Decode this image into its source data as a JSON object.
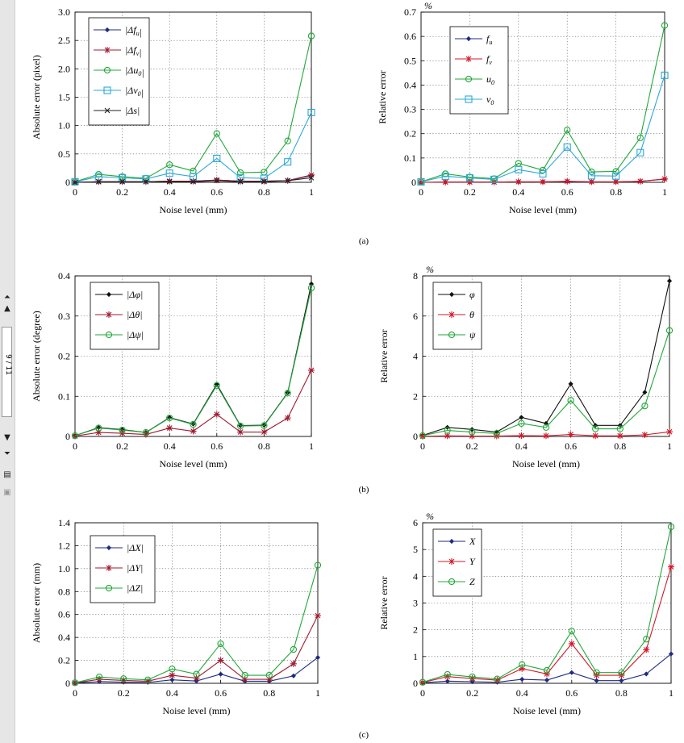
{
  "viewer": {
    "page_indicator": "9 / 11",
    "icons": [
      "first-page-icon",
      "prev-page-icon",
      "next-page-icon",
      "last-page-icon",
      "print-icon",
      "save-icon"
    ]
  },
  "panel_labels": [
    "(a)",
    "(b)",
    "(c)"
  ],
  "chart_data": [
    {
      "type": "line",
      "xlabel": "Noise level (mm)",
      "ylabel": "Absolute error (pixel)",
      "unit_label": "",
      "xlim": [
        0,
        1
      ],
      "ylim": [
        0,
        3
      ],
      "xticks": [
        "0",
        "0.2",
        "0.4",
        "0.6",
        "0.8",
        "1"
      ],
      "yticks": [
        "0",
        "0.5",
        "1.0",
        "1.5",
        "2.0",
        "2.5",
        "3.0"
      ],
      "grid": true,
      "legend": "top-left",
      "x": [
        0,
        0.1,
        0.2,
        0.3,
        0.4,
        0.5,
        0.6,
        0.7,
        0.8,
        0.9,
        1
      ],
      "series": [
        {
          "name": "|Δf_u|",
          "color": "#1f2a80",
          "marker": "diamond",
          "values": [
            0,
            0.01,
            0.01,
            0.01,
            0.02,
            0.02,
            0.04,
            0.02,
            0.02,
            0.03,
            0.12
          ]
        },
        {
          "name": "|Δf_v|",
          "color": "#a01a30",
          "marker": "star",
          "values": [
            0,
            0.01,
            0.01,
            0.01,
            0.02,
            0.02,
            0.04,
            0.02,
            0.02,
            0.03,
            0.13
          ]
        },
        {
          "name": "|Δu_0|",
          "color": "#22a83a",
          "marker": "circle",
          "values": [
            0.01,
            0.14,
            0.1,
            0.07,
            0.31,
            0.2,
            0.86,
            0.17,
            0.18,
            0.73,
            2.58
          ]
        },
        {
          "name": "|Δv_0|",
          "color": "#2aa8d8",
          "marker": "square",
          "values": [
            0.01,
            0.1,
            0.08,
            0.06,
            0.16,
            0.1,
            0.42,
            0.08,
            0.07,
            0.36,
            1.23
          ]
        },
        {
          "name": "|Δs|",
          "color": "#222222",
          "marker": "x",
          "values": [
            0,
            0.01,
            0.01,
            0.01,
            0.01,
            0.01,
            0.03,
            0.01,
            0.01,
            0.03,
            0.08
          ]
        }
      ]
    },
    {
      "type": "line",
      "xlabel": "Noise level (mm)",
      "ylabel": "Relative error",
      "unit_label": "%",
      "xlim": [
        0,
        1
      ],
      "ylim": [
        0,
        0.7
      ],
      "xticks": [
        "0",
        "0.2",
        "0.4",
        "0.6",
        "0.8",
        "1"
      ],
      "yticks": [
        "0",
        "0.1",
        "0.2",
        "0.3",
        "0.4",
        "0.5",
        "0.6",
        "0.7"
      ],
      "grid": true,
      "legend": "top-left",
      "x": [
        0,
        0.1,
        0.2,
        0.3,
        0.4,
        0.5,
        0.6,
        0.7,
        0.8,
        0.9,
        1
      ],
      "series": [
        {
          "name": "f_u",
          "color": "#1f2a80",
          "marker": "diamond",
          "values": [
            0,
            0.001,
            0.001,
            0.001,
            0.002,
            0.002,
            0.004,
            0.002,
            0.002,
            0.004,
            0.013
          ]
        },
        {
          "name": "f_v",
          "color": "#d01828",
          "marker": "star",
          "values": [
            0,
            0.001,
            0.001,
            0.001,
            0.002,
            0.002,
            0.004,
            0.002,
            0.002,
            0.004,
            0.014
          ]
        },
        {
          "name": "u_0",
          "color": "#22a83a",
          "marker": "circle",
          "values": [
            0.002,
            0.035,
            0.022,
            0.015,
            0.078,
            0.05,
            0.215,
            0.043,
            0.045,
            0.183,
            0.645
          ]
        },
        {
          "name": "v_0",
          "color": "#2aa8d8",
          "marker": "square",
          "values": [
            0.002,
            0.025,
            0.018,
            0.012,
            0.052,
            0.035,
            0.145,
            0.027,
            0.026,
            0.122,
            0.44
          ]
        }
      ]
    },
    {
      "type": "line",
      "xlabel": "Noise level (mm)",
      "ylabel": "Absolute error (degree)",
      "unit_label": "",
      "xlim": [
        0,
        1
      ],
      "ylim": [
        0,
        0.4
      ],
      "xticks": [
        "0",
        "0.2",
        "0.4",
        "0.6",
        "0.8",
        "1"
      ],
      "yticks": [
        "0",
        "0.1",
        "0.2",
        "0.3",
        "0.4"
      ],
      "grid": true,
      "legend": "top-left",
      "x": [
        0,
        0.1,
        0.2,
        0.3,
        0.4,
        0.5,
        0.6,
        0.7,
        0.8,
        0.9,
        1
      ],
      "series": [
        {
          "name": "|Δφ|",
          "color": "#111111",
          "marker": "diamond",
          "values": [
            0.002,
            0.022,
            0.017,
            0.01,
            0.047,
            0.031,
            0.13,
            0.027,
            0.028,
            0.109,
            0.38
          ]
        },
        {
          "name": "|Δθ|",
          "color": "#a01a30",
          "marker": "star",
          "values": [
            0.001,
            0.01,
            0.008,
            0.005,
            0.021,
            0.013,
            0.055,
            0.011,
            0.011,
            0.046,
            0.165
          ]
        },
        {
          "name": "|Δψ|",
          "color": "#22a83a",
          "marker": "circle",
          "values": [
            0.002,
            0.021,
            0.016,
            0.01,
            0.046,
            0.03,
            0.127,
            0.026,
            0.027,
            0.108,
            0.37
          ]
        }
      ]
    },
    {
      "type": "line",
      "xlabel": "Noise level (mm)",
      "ylabel": "Relative error",
      "unit_label": "%",
      "xlim": [
        0,
        1
      ],
      "ylim": [
        0,
        8
      ],
      "xticks": [
        "0",
        "0.2",
        "0.4",
        "0.6",
        "0.8",
        "1"
      ],
      "yticks": [
        "0",
        "2",
        "4",
        "6",
        "8"
      ],
      "grid": true,
      "legend": "top-left",
      "x": [
        0,
        0.1,
        0.2,
        0.3,
        0.4,
        0.5,
        0.6,
        0.7,
        0.8,
        0.9,
        1
      ],
      "series": [
        {
          "name": "φ",
          "color": "#111111",
          "marker": "diamond",
          "values": [
            0.05,
            0.45,
            0.35,
            0.22,
            0.95,
            0.65,
            2.62,
            0.55,
            0.55,
            2.2,
            7.75
          ]
        },
        {
          "name": "θ",
          "color": "#d01828",
          "marker": "star",
          "values": [
            0.01,
            0.03,
            0.02,
            0.02,
            0.04,
            0.03,
            0.1,
            0.03,
            0.03,
            0.08,
            0.23
          ]
        },
        {
          "name": "ψ",
          "color": "#22a83a",
          "marker": "circle",
          "values": [
            0.04,
            0.3,
            0.22,
            0.15,
            0.65,
            0.45,
            1.8,
            0.38,
            0.38,
            1.52,
            5.28
          ]
        }
      ]
    },
    {
      "type": "line",
      "xlabel": "Noise level (mm)",
      "ylabel": "Absolute error (mm)",
      "unit_label": "",
      "xlim": [
        0,
        1
      ],
      "ylim": [
        0,
        1.4
      ],
      "xticks": [
        "0",
        "0.2",
        "0.4",
        "0.6",
        "0.8",
        "1"
      ],
      "yticks": [
        "0",
        "0.2",
        "0.4",
        "0.6",
        "0.8",
        "1.0",
        "1.2",
        "1.4"
      ],
      "grid": true,
      "legend": "top-left",
      "x": [
        0,
        0.1,
        0.2,
        0.3,
        0.4,
        0.5,
        0.6,
        0.7,
        0.8,
        0.9,
        1
      ],
      "series": [
        {
          "name": "|ΔX|",
          "color": "#1f2a80",
          "marker": "diamond",
          "values": [
            0.002,
            0.015,
            0.01,
            0.008,
            0.03,
            0.02,
            0.08,
            0.018,
            0.018,
            0.065,
            0.225
          ]
        },
        {
          "name": "|ΔY|",
          "color": "#a01a30",
          "marker": "star",
          "values": [
            0.004,
            0.035,
            0.025,
            0.018,
            0.07,
            0.045,
            0.2,
            0.035,
            0.035,
            0.17,
            0.59
          ]
        },
        {
          "name": "|ΔZ|",
          "color": "#22a83a",
          "marker": "circle",
          "values": [
            0.005,
            0.055,
            0.04,
            0.03,
            0.125,
            0.08,
            0.345,
            0.07,
            0.07,
            0.295,
            1.03
          ]
        }
      ]
    },
    {
      "type": "line",
      "xlabel": "Noise level (mm)",
      "ylabel": "Relative error",
      "unit_label": "%",
      "xlim": [
        0,
        1
      ],
      "ylim": [
        0,
        6
      ],
      "xticks": [
        "0",
        "0.2",
        "0.4",
        "0.6",
        "0.8",
        "1"
      ],
      "yticks": [
        "0",
        "1",
        "2",
        "3",
        "4",
        "5",
        "6"
      ],
      "grid": true,
      "legend": "top-left",
      "x": [
        0,
        0.1,
        0.2,
        0.3,
        0.4,
        0.5,
        0.6,
        0.7,
        0.8,
        0.9,
        1
      ],
      "series": [
        {
          "name": "X",
          "color": "#1f2a80",
          "marker": "diamond",
          "values": [
            0.02,
            0.08,
            0.06,
            0.04,
            0.15,
            0.12,
            0.4,
            0.1,
            0.1,
            0.35,
            1.1
          ]
        },
        {
          "name": "Y",
          "color": "#d01828",
          "marker": "star",
          "values": [
            0.03,
            0.25,
            0.18,
            0.12,
            0.55,
            0.35,
            1.48,
            0.3,
            0.3,
            1.25,
            4.35
          ]
        },
        {
          "name": "Z",
          "color": "#22a83a",
          "marker": "circle",
          "values": [
            0.04,
            0.33,
            0.24,
            0.16,
            0.7,
            0.48,
            1.95,
            0.4,
            0.4,
            1.65,
            5.85
          ]
        }
      ]
    }
  ]
}
